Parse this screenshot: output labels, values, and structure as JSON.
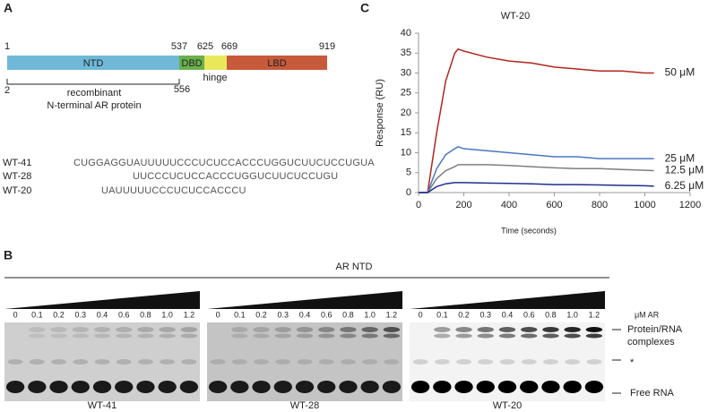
{
  "panel_a": {
    "label": "A",
    "positions": [
      "1",
      "537",
      "625",
      "669",
      "919"
    ],
    "domains": [
      "NTD",
      "DBD",
      "hinge",
      "LBD"
    ],
    "construct": {
      "start": "2",
      "end": "556",
      "lines": [
        "recombinant",
        "N-terminal AR protein"
      ]
    },
    "sequences": [
      {
        "name": "WT-41",
        "seq": "CUGGAGGUAUUUUUCCCUCUCCACCCUGGUCUUCUCCUGUA"
      },
      {
        "name": "WT-28",
        "seq": "UUCCCUCUCCACCCUGGUCUUCUCCUGU"
      },
      {
        "name": "WT-20",
        "seq": "UAUUUUUCCCUCUCCACCCU"
      }
    ]
  },
  "panel_b": {
    "label": "B",
    "title": "AR NTD",
    "unit": "μM AR",
    "concentrations": [
      "0",
      "0.1",
      "0.2",
      "0.3",
      "0.4",
      "0.6",
      "0.8",
      "1.0",
      "1.2"
    ],
    "gels": [
      "WT-41",
      "WT-28",
      "WT-20"
    ],
    "band_labels": {
      "complex": [
        "Protein/RNA",
        "complexes"
      ],
      "star": "*",
      "free": "Free RNA"
    }
  },
  "chart_data": {
    "type": "line",
    "label": "C",
    "title": "WT-20",
    "x_label": "Time (seconds)",
    "y_label": "Response (RU)",
    "x": [
      0,
      40,
      80,
      120,
      160,
      175,
      200,
      300,
      400,
      500,
      600,
      700,
      800,
      900,
      1000,
      1040
    ],
    "series": [
      {
        "name": "50 μM",
        "color": "#b3261e",
        "values": [
          0,
          0,
          15,
          28,
          35,
          36,
          35.5,
          34,
          33,
          32.5,
          31.5,
          31,
          30.5,
          30.5,
          30,
          30
        ]
      },
      {
        "name": "25 μM",
        "color": "#4a78c2",
        "values": [
          0,
          0,
          6,
          9.5,
          11,
          11.5,
          11,
          10.5,
          10,
          9.5,
          9,
          9,
          8.5,
          8.5,
          8.5,
          8.5
        ]
      },
      {
        "name": "12.5 μM",
        "color": "#7f7f7f",
        "values": [
          0,
          0,
          3.5,
          5.5,
          6.5,
          7,
          7,
          7,
          6.8,
          6.5,
          6.2,
          6,
          6,
          5.8,
          5.6,
          5.5
        ]
      },
      {
        "name": "6.25 μM",
        "color": "#1f2f8f",
        "values": [
          0,
          0,
          1.5,
          2.2,
          2.5,
          2.5,
          2.5,
          2.4,
          2.3,
          2.2,
          2,
          2,
          1.9,
          1.8,
          1.7,
          1.6
        ]
      }
    ],
    "xlim": [
      0,
      1200
    ],
    "xticks": [
      0,
      200,
      400,
      600,
      800,
      1000,
      1200
    ],
    "ylim": [
      0,
      40
    ],
    "yticks": [
      0,
      5,
      10,
      15,
      20,
      25,
      30,
      35,
      40
    ]
  }
}
